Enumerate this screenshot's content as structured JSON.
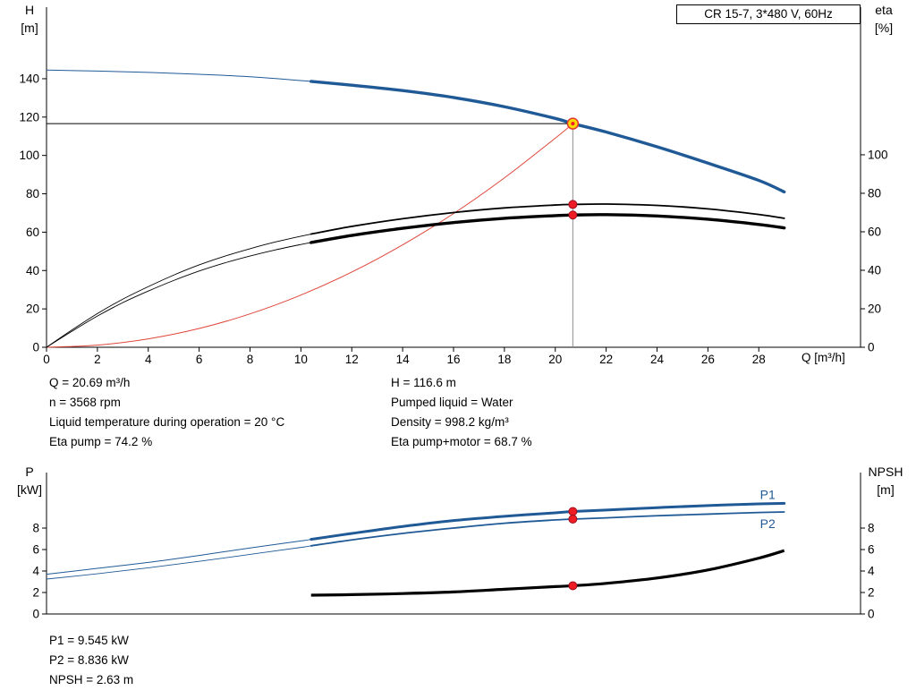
{
  "title_box": {
    "text": "CR 15-7, 3*480 V, 60Hz"
  },
  "colors": {
    "blue": "#205a96",
    "black": "#000000",
    "red": "#e0463a",
    "dot_red": "#ee1c25",
    "dot_edge": "#9b0f1e",
    "duty_fill": "#ffd800",
    "duty_edge": "#e03a2f",
    "gray": "#8f8f8f"
  },
  "info_top": {
    "left": [
      "Q = 20.69 m³/h",
      "n = 3568 rpm",
      "Liquid temperature during operation = 20 °C",
      "Eta pump = 74.2 %"
    ],
    "right": [
      "H = 116.6 m",
      "Pumped liquid = Water",
      "Density = 998.2 kg/m³",
      "Eta pump+motor = 68.7 %"
    ]
  },
  "info_bottom": [
    "P1 = 9.545 kW",
    "P2 = 8.836 kW",
    "NPSH = 2.63 m"
  ],
  "chart_data": [
    {
      "type": "line",
      "id": "head-efficiency-chart",
      "x_axis": {
        "label": "Q [m³/h]",
        "range": [
          0,
          32
        ],
        "ticks": [
          0,
          2,
          4,
          6,
          8,
          10,
          12,
          14,
          16,
          18,
          20,
          22,
          24,
          26,
          28
        ]
      },
      "left_axis": {
        "name": "H",
        "unit": "[m]",
        "range": [
          0,
          177.3
        ],
        "ticks": [
          0,
          20,
          40,
          60,
          80,
          100,
          120,
          140
        ]
      },
      "right_axis": {
        "name": "eta",
        "unit": "[%]",
        "range": [
          0,
          176.7
        ],
        "ticks": [
          0,
          20,
          40,
          60,
          80,
          100
        ]
      },
      "series": [
        {
          "name": "system-curve",
          "axis": "left",
          "color_key": "red",
          "w_thick": 1,
          "points": [
            [
              0,
              0
            ],
            [
              2,
              1.1
            ],
            [
              4,
              4.4
            ],
            [
              6,
              9.8
            ],
            [
              8,
              17.4
            ],
            [
              10,
              27.2
            ],
            [
              12,
              39.2
            ],
            [
              14,
              53.4
            ],
            [
              16,
              69.7
            ],
            [
              18,
              88.3
            ],
            [
              20,
              109
            ],
            [
              20.69,
              116.6
            ]
          ]
        },
        {
          "name": "eta-pump",
          "axis": "right",
          "color_key": "black",
          "split_q": 10.4,
          "w_thin": 0.9,
          "w_thick": 1.8,
          "points": [
            [
              0,
              0
            ],
            [
              1,
              9
            ],
            [
              2,
              17.5
            ],
            [
              3,
              25
            ],
            [
              4,
              31.5
            ],
            [
              5,
              37.5
            ],
            [
              6,
              42.8
            ],
            [
              7,
              47.3
            ],
            [
              8,
              51.2
            ],
            [
              9,
              54.7
            ],
            [
              10,
              57.7
            ],
            [
              10.4,
              58.8
            ],
            [
              12,
              62.8
            ],
            [
              14,
              66.8
            ],
            [
              16,
              70
            ],
            [
              18,
              72.4
            ],
            [
              20,
              73.9
            ],
            [
              20.69,
              74.2
            ],
            [
              22,
              74.4
            ],
            [
              24,
              73.7
            ],
            [
              26,
              71.9
            ],
            [
              28,
              69
            ],
            [
              29,
              67
            ]
          ]
        },
        {
          "name": "eta-pump-motor",
          "axis": "right",
          "color_key": "black",
          "split_q": 10.4,
          "w_thin": 0.9,
          "w_thick": 3.4,
          "points": [
            [
              0,
              0
            ],
            [
              1,
              8.3
            ],
            [
              2,
              16.2
            ],
            [
              3,
              23.2
            ],
            [
              4,
              29.2
            ],
            [
              5,
              34.7
            ],
            [
              6,
              39.6
            ],
            [
              7,
              43.8
            ],
            [
              8,
              47.4
            ],
            [
              9,
              50.6
            ],
            [
              10,
              53.4
            ],
            [
              10.4,
              54.4
            ],
            [
              12,
              58.1
            ],
            [
              14,
              61.8
            ],
            [
              16,
              64.8
            ],
            [
              18,
              67
            ],
            [
              20,
              68.4
            ],
            [
              20.69,
              68.7
            ],
            [
              22,
              68.9
            ],
            [
              24,
              68.2
            ],
            [
              26,
              66.5
            ],
            [
              28,
              63.8
            ],
            [
              29,
              62
            ]
          ]
        },
        {
          "name": "H-curve",
          "axis": "left",
          "color_key": "blue",
          "split_q": 10.4,
          "w_thin": 1,
          "w_thick": 3.4,
          "points": [
            [
              0,
              144.5
            ],
            [
              2,
              144
            ],
            [
              4,
              143.3
            ],
            [
              6,
              142.3
            ],
            [
              8,
              141
            ],
            [
              10.4,
              138.6
            ],
            [
              12,
              136.6
            ],
            [
              14,
              133.8
            ],
            [
              16,
              130.2
            ],
            [
              18,
              125.4
            ],
            [
              20,
              119.3
            ],
            [
              20.69,
              116.6
            ],
            [
              22,
              112.2
            ],
            [
              24,
              104.5
            ],
            [
              26,
              96
            ],
            [
              28,
              87
            ],
            [
              29,
              81
            ]
          ]
        }
      ],
      "duty_point": {
        "q": 20.69,
        "value": 116.6,
        "axis": "left"
      },
      "dots": [
        {
          "q": 20.69,
          "value": 74.2,
          "axis": "right"
        },
        {
          "q": 20.69,
          "value": 68.7,
          "axis": "right"
        }
      ]
    },
    {
      "type": "line",
      "id": "power-npsh-chart",
      "x_axis": {
        "label": "",
        "range": [
          0,
          32
        ],
        "ticks": []
      },
      "left_axis": {
        "name": "P",
        "unit": "[kW]",
        "range": [
          0,
          13.17
        ],
        "ticks": [
          0,
          2,
          4,
          6,
          8
        ]
      },
      "right_axis": {
        "name": "NPSH",
        "unit": "[m]",
        "range": [
          0,
          13.17
        ],
        "ticks": [
          0,
          2,
          4,
          6,
          8
        ]
      },
      "series": [
        {
          "name": "P1",
          "axis": "left",
          "color_key": "blue",
          "split_q": 10.4,
          "w_thin": 1,
          "w_thick": 3,
          "points": [
            [
              0,
              3.7
            ],
            [
              2,
              4.25
            ],
            [
              4,
              4.8
            ],
            [
              6,
              5.45
            ],
            [
              8,
              6.15
            ],
            [
              10,
              6.8
            ],
            [
              10.4,
              6.95
            ],
            [
              12,
              7.5
            ],
            [
              14,
              8.15
            ],
            [
              16,
              8.7
            ],
            [
              18,
              9.1
            ],
            [
              20,
              9.42
            ],
            [
              20.69,
              9.545
            ],
            [
              22,
              9.68
            ],
            [
              24,
              9.9
            ],
            [
              26,
              10.1
            ],
            [
              28,
              10.25
            ],
            [
              29,
              10.3
            ]
          ]
        },
        {
          "name": "P2",
          "axis": "left",
          "color_key": "blue",
          "split_q": 10.4,
          "w_thin": 0.9,
          "w_thick": 1.8,
          "points": [
            [
              0,
              3.25
            ],
            [
              2,
              3.75
            ],
            [
              4,
              4.3
            ],
            [
              6,
              4.9
            ],
            [
              8,
              5.55
            ],
            [
              10,
              6.2
            ],
            [
              10.4,
              6.35
            ],
            [
              12,
              6.9
            ],
            [
              14,
              7.5
            ],
            [
              16,
              8.0
            ],
            [
              18,
              8.45
            ],
            [
              20,
              8.76
            ],
            [
              20.69,
              8.836
            ],
            [
              22,
              8.95
            ],
            [
              24,
              9.15
            ],
            [
              26,
              9.3
            ],
            [
              28,
              9.45
            ],
            [
              29,
              9.5
            ]
          ]
        },
        {
          "name": "NPSH",
          "axis": "right",
          "color_key": "black",
          "w_thick": 3.2,
          "points": [
            [
              10.4,
              1.75
            ],
            [
              12,
              1.8
            ],
            [
              14,
              1.9
            ],
            [
              16,
              2.05
            ],
            [
              18,
              2.3
            ],
            [
              20,
              2.55
            ],
            [
              20.69,
              2.63
            ],
            [
              22,
              2.85
            ],
            [
              24,
              3.35
            ],
            [
              26,
              4.1
            ],
            [
              28,
              5.2
            ],
            [
              29,
              5.9
            ]
          ]
        }
      ],
      "labels": [
        {
          "text": "P1",
          "q": 28.05,
          "value": 10.7,
          "axis": "left"
        },
        {
          "text": "P2",
          "q": 28.05,
          "value": 8.0,
          "axis": "left"
        }
      ],
      "dots": [
        {
          "q": 20.69,
          "value": 9.545,
          "axis": "left"
        },
        {
          "q": 20.69,
          "value": 8.836,
          "axis": "left"
        },
        {
          "q": 20.69,
          "value": 2.63,
          "axis": "right"
        }
      ]
    }
  ]
}
